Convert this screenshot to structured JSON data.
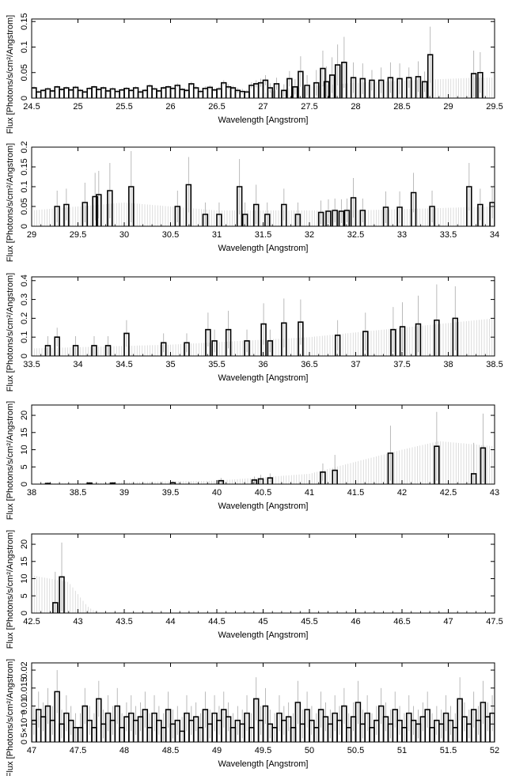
{
  "chart_data": [
    {
      "type": "step",
      "xlabel": "Wavelength [Angstrom]",
      "ylabel": "Flux [Photons/s/cm²/Angstrom]",
      "xlim": [
        24.5,
        29.5
      ],
      "ylim": [
        0,
        0.155
      ],
      "xticks": [
        "24.5",
        "25",
        "25.5",
        "26",
        "26.5",
        "27",
        "27.5",
        "28",
        "28.5",
        "29",
        "29.5"
      ],
      "yticks": [
        "0",
        "0.05",
        "0.1",
        "0.15"
      ],
      "series": [
        {
          "x": [
            24.5,
            24.55,
            24.6,
            24.65,
            24.7,
            24.75,
            24.8,
            24.85,
            24.9,
            24.95,
            25.0,
            25.05,
            25.1,
            25.15,
            25.2,
            25.25,
            25.3,
            25.35,
            25.4,
            25.45,
            25.5,
            25.55,
            25.6,
            25.65,
            25.7,
            25.75,
            25.8,
            25.85,
            25.9,
            25.95,
            26.0,
            26.05,
            26.1,
            26.15,
            26.2,
            26.25,
            26.3,
            26.35,
            26.4,
            26.45,
            26.5,
            26.55,
            26.6,
            26.65,
            26.7,
            26.75,
            26.8,
            26.85,
            26.9,
            26.95,
            27.0,
            27.05,
            27.12,
            27.2,
            27.26,
            27.32,
            27.38,
            27.45,
            27.55,
            27.62,
            27.66,
            27.72,
            27.78,
            27.85,
            27.95,
            28.05,
            28.15,
            28.25,
            28.35,
            28.45,
            28.55,
            28.65,
            28.72,
            28.78,
            29.25,
            29.32
          ],
          "y": [
            0.02,
            0.012,
            0.015,
            0.018,
            0.014,
            0.022,
            0.017,
            0.02,
            0.016,
            0.021,
            0.015,
            0.012,
            0.019,
            0.022,
            0.017,
            0.02,
            0.014,
            0.018,
            0.013,
            0.016,
            0.019,
            0.015,
            0.02,
            0.012,
            0.015,
            0.024,
            0.018,
            0.014,
            0.02,
            0.022,
            0.019,
            0.025,
            0.017,
            0.015,
            0.028,
            0.02,
            0.013,
            0.019,
            0.021,
            0.016,
            0.018,
            0.03,
            0.022,
            0.02,
            0.015,
            0.013,
            0.012,
            0.025,
            0.028,
            0.03,
            0.035,
            0.02,
            0.028,
            0.015,
            0.038,
            0.022,
            0.052,
            0.025,
            0.03,
            0.058,
            0.032,
            0.045,
            0.065,
            0.07,
            0.04,
            0.038,
            0.035,
            0.035,
            0.04,
            0.038,
            0.04,
            0.042,
            0.032,
            0.085,
            0.048,
            0.05
          ],
          "err": [
            0.003,
            0.003,
            0.003,
            0.003,
            0.003,
            0.003,
            0.003,
            0.003,
            0.003,
            0.003,
            0.003,
            0.003,
            0.003,
            0.003,
            0.003,
            0.003,
            0.003,
            0.003,
            0.003,
            0.003,
            0.003,
            0.003,
            0.003,
            0.003,
            0.003,
            0.003,
            0.003,
            0.003,
            0.003,
            0.003,
            0.003,
            0.004,
            0.003,
            0.003,
            0.004,
            0.004,
            0.003,
            0.004,
            0.004,
            0.003,
            0.004,
            0.005,
            0.005,
            0.004,
            0.005,
            0.005,
            0.004,
            0.006,
            0.007,
            0.008,
            0.01,
            0.009,
            0.012,
            0.012,
            0.015,
            0.015,
            0.03,
            0.02,
            0.025,
            0.035,
            0.03,
            0.035,
            0.04,
            0.05,
            0.03,
            0.03,
            0.02,
            0.025,
            0.03,
            0.03,
            0.02,
            0.03,
            0.02,
            0.055,
            0.045,
            0.04
          ]
        }
      ],
      "model_envelope": [
        [
          27.0,
          0.01
        ],
        [
          27.3,
          0.02
        ],
        [
          28.0,
          0.03
        ],
        [
          28.6,
          0.035
        ],
        [
          29.3,
          0.04
        ],
        [
          29.5,
          0.04
        ]
      ]
    },
    {
      "type": "step",
      "xlabel": "Wavelength [Angstrom]",
      "ylabel": "Flux [Photons/s/cm²/Angstrom]",
      "xlim": [
        29,
        34
      ],
      "ylim": [
        0,
        0.2
      ],
      "xticks": [
        "29",
        "29.5",
        "30",
        "30.5",
        "31",
        "31.5",
        "32",
        "32.5",
        "33",
        "33.5",
        "34"
      ],
      "yticks": [
        "0",
        "0.05",
        "0.1",
        "0.15",
        "0.2"
      ],
      "series": [
        {
          "x": [
            29.25,
            29.35,
            29.55,
            29.66,
            29.7,
            29.82,
            30.05,
            30.55,
            30.67,
            30.85,
            31.0,
            31.22,
            31.28,
            31.4,
            31.52,
            31.7,
            31.85,
            32.1,
            32.18,
            32.25,
            32.32,
            32.38,
            32.45,
            32.55,
            32.8,
            32.95,
            33.1,
            33.3,
            33.7,
            33.82,
            33.95
          ],
          "y": [
            0.05,
            0.055,
            0.06,
            0.075,
            0.08,
            0.09,
            0.1,
            0.05,
            0.105,
            0.03,
            0.03,
            0.1,
            0.03,
            0.055,
            0.03,
            0.055,
            0.03,
            0.035,
            0.038,
            0.04,
            0.038,
            0.04,
            0.072,
            0.04,
            0.048,
            0.048,
            0.085,
            0.05,
            0.1,
            0.055,
            0.06
          ],
          "err": [
            0.04,
            0.04,
            0.05,
            0.06,
            0.06,
            0.07,
            0.09,
            0.04,
            0.07,
            0.03,
            0.03,
            0.07,
            0.03,
            0.05,
            0.03,
            0.04,
            0.03,
            0.03,
            0.03,
            0.03,
            0.03,
            0.03,
            0.05,
            0.03,
            0.04,
            0.04,
            0.05,
            0.04,
            0.06,
            0.04,
            0.04
          ]
        }
      ],
      "model_envelope": [
        [
          29.0,
          0.04
        ],
        [
          30.0,
          0.06
        ],
        [
          31.0,
          0.04
        ],
        [
          32.5,
          0.04
        ],
        [
          34.0,
          0.05
        ]
      ]
    },
    {
      "type": "step",
      "xlabel": "Wavelength [Angstrom]",
      "ylabel": "Flux [Photons/s/cm²/Angstrom]",
      "xlim": [
        33.5,
        38.5
      ],
      "ylim": [
        0,
        0.42
      ],
      "xticks": [
        "33.5",
        "34",
        "34.5",
        "35",
        "35.5",
        "36",
        "36.5",
        "37",
        "37.5",
        "38",
        "38.5"
      ],
      "yticks": [
        "0",
        "0.1",
        "0.2",
        "0.3",
        "0.4"
      ],
      "series": [
        {
          "x": [
            33.65,
            33.75,
            33.95,
            34.15,
            34.3,
            34.5,
            34.9,
            35.15,
            35.38,
            35.45,
            35.6,
            35.8,
            35.98,
            36.05,
            36.2,
            36.38,
            36.78,
            37.08,
            37.38,
            37.48,
            37.65,
            37.85,
            38.05
          ],
          "y": [
            0.055,
            0.1,
            0.055,
            0.055,
            0.055,
            0.12,
            0.07,
            0.07,
            0.14,
            0.08,
            0.14,
            0.08,
            0.17,
            0.08,
            0.175,
            0.18,
            0.11,
            0.13,
            0.14,
            0.155,
            0.17,
            0.19,
            0.2
          ],
          "err": [
            0.05,
            0.05,
            0.05,
            0.05,
            0.05,
            0.07,
            0.05,
            0.05,
            0.09,
            0.06,
            0.1,
            0.06,
            0.11,
            0.06,
            0.13,
            0.12,
            0.08,
            0.1,
            0.12,
            0.13,
            0.15,
            0.19,
            0.17
          ]
        }
      ],
      "model_envelope": [
        [
          33.5,
          0.04
        ],
        [
          35.0,
          0.06
        ],
        [
          36.5,
          0.1
        ],
        [
          37.5,
          0.15
        ],
        [
          38.5,
          0.2
        ]
      ]
    },
    {
      "type": "step",
      "xlabel": "Wavelength [Angstrom]",
      "ylabel": "Flux [Photons/s/cm²/Angstrom]",
      "xlim": [
        38,
        43
      ],
      "ylim": [
        0,
        23
      ],
      "xticks": [
        "38",
        "38.5",
        "39",
        "39.5",
        "40",
        "40.5",
        "41",
        "41.5",
        "42",
        "42.5",
        "43"
      ],
      "yticks": [
        "0",
        "5",
        "10",
        "15",
        "20"
      ],
      "series": [
        {
          "x": [
            38.15,
            38.6,
            38.85,
            39.5,
            40.02,
            40.38,
            40.45,
            40.55,
            41.12,
            41.25,
            41.85,
            42.35,
            42.75,
            42.85
          ],
          "y": [
            0.2,
            0.3,
            0.3,
            0.4,
            1.0,
            1.2,
            1.5,
            1.8,
            3.5,
            4.0,
            9.0,
            11.0,
            3.0,
            10.5
          ],
          "err": [
            0.3,
            0.3,
            0.3,
            0.4,
            0.8,
            1.0,
            1.2,
            1.3,
            2.5,
            4.5,
            8.0,
            10.0,
            9.0,
            10.0
          ]
        }
      ],
      "model_envelope": [
        [
          38.0,
          0.1
        ],
        [
          40.0,
          1.0
        ],
        [
          41.0,
          3.0
        ],
        [
          42.0,
          10.0
        ],
        [
          42.4,
          12.5
        ],
        [
          43.0,
          11.0
        ]
      ]
    },
    {
      "type": "step",
      "xlabel": "Wavelength [Angstrom]",
      "ylabel": "Flux [Photons/s/cm²/Angstrom]",
      "xlim": [
        42.5,
        47.5
      ],
      "ylim": [
        0,
        23
      ],
      "xticks": [
        "42.5",
        "43",
        "43.5",
        "44",
        "44.5",
        "45",
        "45.5",
        "46",
        "46.5",
        "47",
        "47.5"
      ],
      "yticks": [
        "0",
        "5",
        "10",
        "15",
        "20"
      ],
      "series": [
        {
          "x": [
            42.73,
            42.8
          ],
          "y": [
            3.0,
            10.5
          ],
          "err": [
            9.0,
            10.0
          ]
        }
      ],
      "model_envelope": [
        [
          42.5,
          11.0
        ],
        [
          42.9,
          9.0
        ],
        [
          43.1,
          2.0
        ],
        [
          43.2,
          0.2
        ],
        [
          43.3,
          0.0
        ]
      ]
    },
    {
      "type": "step",
      "xlabel": "Wavelength [Angstrom]",
      "ylabel": "Flux [Photons/s/cm²/Angstrom]",
      "xlim": [
        47,
        52
      ],
      "ylim": [
        0,
        0.022
      ],
      "xticks": [
        "47",
        "47.5",
        "48",
        "48.5",
        "49",
        "49.5",
        "50",
        "50.5",
        "51",
        "51.5",
        "52"
      ],
      "yticks": [
        "0",
        "5×10⁻³",
        "0.01",
        "0.015",
        "0.02"
      ],
      "series": [
        {
          "x": [
            47.0,
            47.05,
            47.1,
            47.15,
            47.2,
            47.25,
            47.3,
            47.35,
            47.4,
            47.45,
            47.5,
            47.55,
            47.6,
            47.65,
            47.7,
            47.75,
            47.8,
            47.85,
            47.9,
            47.95,
            48.0,
            48.05,
            48.1,
            48.15,
            48.2,
            48.25,
            48.3,
            48.35,
            48.4,
            48.45,
            48.5,
            48.55,
            48.6,
            48.65,
            48.7,
            48.75,
            48.8,
            48.85,
            48.9,
            48.95,
            49.0,
            49.05,
            49.1,
            49.15,
            49.2,
            49.25,
            49.3,
            49.35,
            49.4,
            49.45,
            49.5,
            49.55,
            49.6,
            49.65,
            49.7,
            49.75,
            49.8,
            49.85,
            49.9,
            49.95,
            50.0,
            50.05,
            50.1,
            50.15,
            50.2,
            50.25,
            50.3,
            50.35,
            50.4,
            50.45,
            50.5,
            50.55,
            50.6,
            50.65,
            50.7,
            50.75,
            50.8,
            50.85,
            50.9,
            50.95,
            51.0,
            51.05,
            51.1,
            51.15,
            51.2,
            51.25,
            51.3,
            51.35,
            51.4,
            51.45,
            51.5,
            51.55,
            51.6,
            51.65,
            51.7,
            51.75,
            51.8,
            51.85,
            51.9,
            51.95
          ],
          "y": [
            0.006,
            0.009,
            0.007,
            0.01,
            0.006,
            0.014,
            0.005,
            0.008,
            0.006,
            0.004,
            0.004,
            0.01,
            0.006,
            0.004,
            0.012,
            0.005,
            0.008,
            0.006,
            0.01,
            0.004,
            0.007,
            0.008,
            0.006,
            0.007,
            0.009,
            0.004,
            0.008,
            0.006,
            0.004,
            0.009,
            0.005,
            0.006,
            0.003,
            0.008,
            0.006,
            0.007,
            0.004,
            0.009,
            0.005,
            0.008,
            0.006,
            0.009,
            0.007,
            0.004,
            0.006,
            0.005,
            0.008,
            0.004,
            0.012,
            0.006,
            0.01,
            0.005,
            0.004,
            0.008,
            0.006,
            0.007,
            0.004,
            0.011,
            0.005,
            0.009,
            0.006,
            0.004,
            0.009,
            0.007,
            0.005,
            0.008,
            0.006,
            0.01,
            0.004,
            0.007,
            0.011,
            0.005,
            0.008,
            0.004,
            0.006,
            0.01,
            0.007,
            0.005,
            0.009,
            0.006,
            0.004,
            0.008,
            0.006,
            0.005,
            0.007,
            0.009,
            0.004,
            0.006,
            0.005,
            0.008,
            0.006,
            0.004,
            0.012,
            0.007,
            0.005,
            0.009,
            0.006,
            0.011,
            0.007,
            0.008
          ],
          "err": [
            0.004,
            0.005,
            0.004,
            0.005,
            0.004,
            0.006,
            0.004,
            0.005,
            0.004,
            0.004,
            0.004,
            0.005,
            0.004,
            0.004,
            0.005,
            0.004,
            0.005,
            0.004,
            0.005,
            0.004,
            0.004,
            0.005,
            0.004,
            0.004,
            0.005,
            0.004,
            0.005,
            0.004,
            0.004,
            0.005,
            0.004,
            0.004,
            0.004,
            0.005,
            0.004,
            0.004,
            0.004,
            0.005,
            0.004,
            0.005,
            0.004,
            0.005,
            0.004,
            0.004,
            0.004,
            0.004,
            0.005,
            0.004,
            0.006,
            0.004,
            0.005,
            0.004,
            0.004,
            0.005,
            0.004,
            0.004,
            0.004,
            0.006,
            0.004,
            0.005,
            0.004,
            0.004,
            0.005,
            0.004,
            0.004,
            0.005,
            0.004,
            0.005,
            0.004,
            0.004,
            0.006,
            0.004,
            0.005,
            0.004,
            0.004,
            0.005,
            0.004,
            0.004,
            0.005,
            0.004,
            0.004,
            0.005,
            0.004,
            0.004,
            0.004,
            0.005,
            0.004,
            0.004,
            0.004,
            0.005,
            0.004,
            0.004,
            0.006,
            0.004,
            0.004,
            0.005,
            0.004,
            0.006,
            0.004,
            0.005
          ]
        }
      ],
      "model_envelope": []
    }
  ]
}
